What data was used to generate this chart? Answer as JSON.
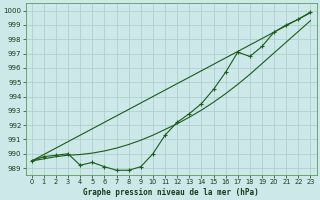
{
  "xlabel": "Graphe pression niveau de la mer (hPa)",
  "ylim": [
    988.5,
    1000.5
  ],
  "xlim": [
    -0.5,
    23.5
  ],
  "yticks": [
    989,
    990,
    991,
    992,
    993,
    994,
    995,
    996,
    997,
    998,
    999,
    1000
  ],
  "xticks": [
    0,
    1,
    2,
    3,
    4,
    5,
    6,
    7,
    8,
    9,
    10,
    11,
    12,
    13,
    14,
    15,
    16,
    17,
    18,
    19,
    20,
    21,
    22,
    23
  ],
  "background_color": "#cce8e8",
  "grid_color": "#aacccc",
  "line_color": "#1a5c1a",
  "hours": [
    0,
    1,
    2,
    3,
    4,
    5,
    6,
    7,
    8,
    9,
    10,
    11,
    12,
    13,
    14,
    15,
    16,
    17,
    18,
    19,
    20,
    21,
    22,
    23
  ],
  "pressure_main": [
    989.5,
    989.8,
    989.9,
    990.0,
    989.2,
    989.4,
    989.1,
    988.85,
    988.85,
    989.1,
    990.0,
    991.3,
    992.2,
    992.8,
    993.5,
    994.5,
    995.7,
    997.1,
    996.8,
    997.5,
    998.5,
    999.0,
    999.4,
    999.9
  ],
  "pressure_smooth1": [
    989.5,
    989.65,
    989.8,
    989.9,
    989.95,
    990.05,
    990.2,
    990.4,
    990.65,
    990.95,
    991.3,
    991.7,
    992.1,
    992.55,
    993.05,
    993.6,
    994.2,
    994.85,
    995.55,
    996.3,
    997.05,
    997.8,
    998.55,
    999.3
  ],
  "pressure_straight": [
    989.5,
    989.95,
    990.4,
    990.85,
    991.3,
    991.75,
    992.2,
    992.65,
    993.1,
    993.55,
    994.0,
    994.45,
    994.9,
    995.35,
    995.8,
    996.25,
    996.7,
    997.15,
    997.6,
    998.05,
    998.5,
    998.95,
    999.4,
    999.85
  ]
}
